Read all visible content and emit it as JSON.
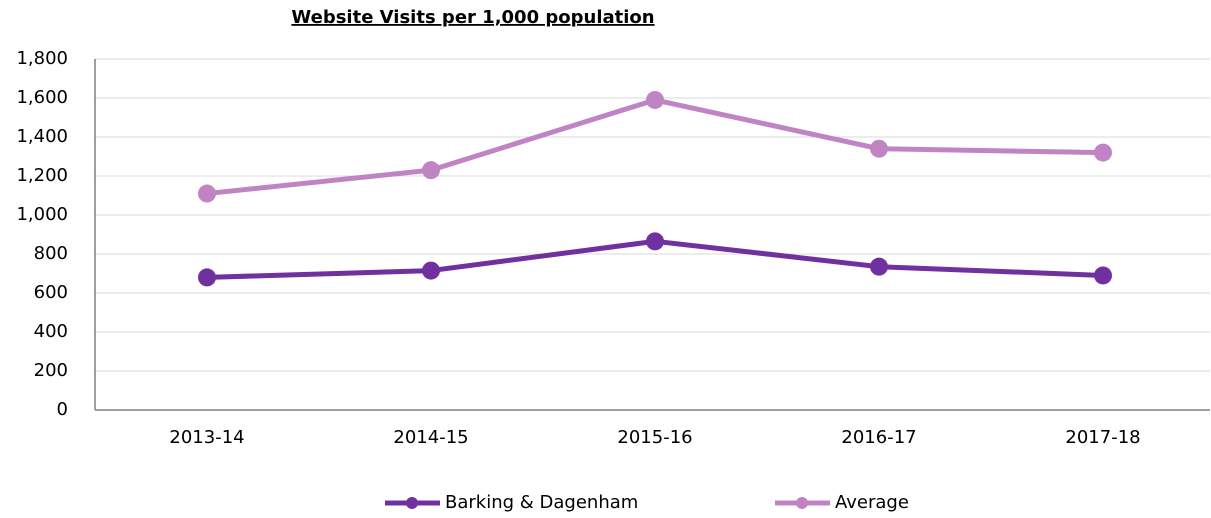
{
  "chart_data": {
    "type": "line",
    "title": "Website Visits per 1,000 population",
    "categories": [
      "2013-14",
      "2014-15",
      "2015-16",
      "2016-17",
      "2017-18"
    ],
    "series": [
      {
        "name": "Barking & Dagenham",
        "color": "#7030a0",
        "values": [
          680,
          715,
          865,
          735,
          690
        ]
      },
      {
        "name": "Average",
        "color": "#c084c4",
        "values": [
          1110,
          1230,
          1590,
          1340,
          1320
        ]
      }
    ],
    "ylim": [
      0,
      1800
    ],
    "yticks": [
      0,
      200,
      400,
      600,
      800,
      {
        "value": 1000,
        "label": "1,000"
      },
      {
        "value": 1200,
        "label": "1,200"
      },
      {
        "value": 1400,
        "label": "1,400"
      },
      {
        "value": 1600,
        "label": "1,600"
      },
      {
        "value": 1800,
        "label": "1,800"
      }
    ],
    "grid": true,
    "legend": "bottom"
  }
}
